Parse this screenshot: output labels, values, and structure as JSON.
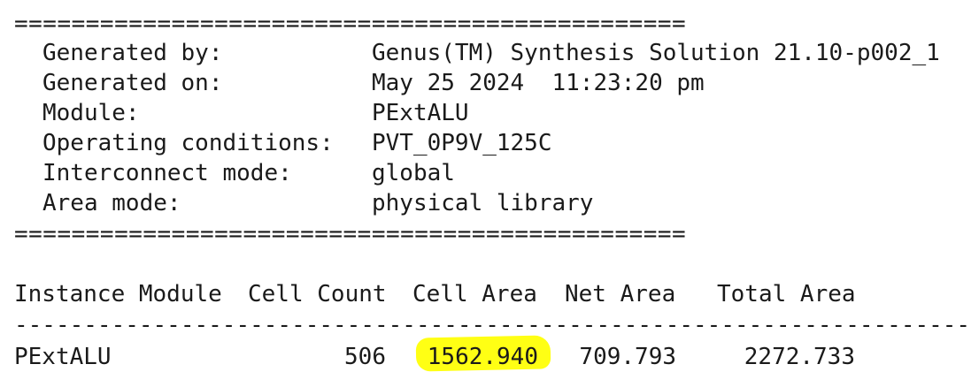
{
  "report": {
    "separator_top": "===============================================",
    "separator_bottom": "===============================================",
    "header_fields": [
      {
        "label": "Generated by:",
        "value": "Genus(TM) Synthesis Solution 21.10-p002_1"
      },
      {
        "label": "Generated on:",
        "value": "May 25 2024  11:23:20 pm"
      },
      {
        "label": "Module:",
        "value": "PExtALU"
      },
      {
        "label": "Operating conditions:",
        "value": "PVT_0P9V_125C"
      },
      {
        "label": "Interconnect mode:",
        "value": "global"
      },
      {
        "label": "Area mode:",
        "value": "physical library"
      }
    ],
    "table": {
      "columns": [
        "Instance Module",
        "Cell Count",
        "Cell Area",
        "Net Area",
        "Total Area"
      ],
      "divider": "-----------------------------------------------------------------------",
      "rows": [
        {
          "instance": "PExtALU",
          "cell_count": "506",
          "cell_area": "1562.940",
          "net_area": "709.793",
          "total_area": "2272.733"
        }
      ]
    },
    "highlight_color": "#ffff14"
  }
}
